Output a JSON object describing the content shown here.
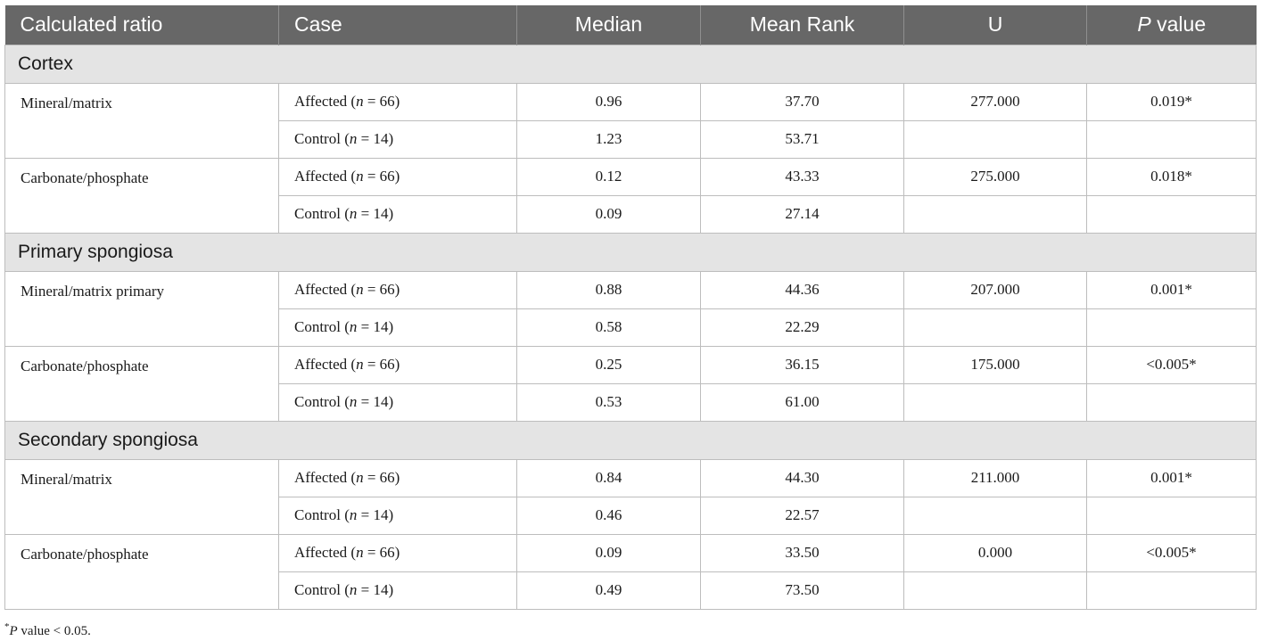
{
  "header": {
    "col1": "Calculated ratio",
    "col2": "Case",
    "col3": "Median",
    "col4": "Mean Rank",
    "col5": "U",
    "col6_italic": "P",
    "col6_rest": " value"
  },
  "sections": [
    {
      "title": "Cortex",
      "groups": [
        {
          "ratio": "Mineral/matrix",
          "rows": [
            {
              "case_prefix": "Affected (",
              "case_n": "n",
              "case_suffix": " = 66)",
              "median": "0.96",
              "mean_rank": "37.70",
              "u": "277.000",
              "p": "0.019*"
            },
            {
              "case_prefix": "Control (",
              "case_n": "n",
              "case_suffix": " = 14)",
              "median": "1.23",
              "mean_rank": "53.71",
              "u": "",
              "p": ""
            }
          ]
        },
        {
          "ratio": "Carbonate/phosphate",
          "rows": [
            {
              "case_prefix": "Affected (",
              "case_n": "n",
              "case_suffix": " = 66)",
              "median": "0.12",
              "mean_rank": "43.33",
              "u": "275.000",
              "p": "0.018*"
            },
            {
              "case_prefix": "Control (",
              "case_n": "n",
              "case_suffix": " = 14)",
              "median": "0.09",
              "mean_rank": "27.14",
              "u": "",
              "p": ""
            }
          ]
        }
      ]
    },
    {
      "title": "Primary spongiosa",
      "groups": [
        {
          "ratio": "Mineral/matrix primary",
          "rows": [
            {
              "case_prefix": "Affected (",
              "case_n": "n",
              "case_suffix": " = 66)",
              "median": "0.88",
              "mean_rank": "44.36",
              "u": "207.000",
              "p": "0.001*"
            },
            {
              "case_prefix": "Control (",
              "case_n": "n",
              "case_suffix": " = 14)",
              "median": "0.58",
              "mean_rank": "22.29",
              "u": "",
              "p": ""
            }
          ]
        },
        {
          "ratio": "Carbonate/phosphate",
          "rows": [
            {
              "case_prefix": "Affected (",
              "case_n": "n",
              "case_suffix": " = 66)",
              "median": "0.25",
              "mean_rank": "36.15",
              "u": "175.000",
              "p": "<0.005*"
            },
            {
              "case_prefix": "Control (",
              "case_n": "n",
              "case_suffix": " = 14)",
              "median": "0.53",
              "mean_rank": "61.00",
              "u": "",
              "p": ""
            }
          ]
        }
      ]
    },
    {
      "title": "Secondary spongiosa",
      "groups": [
        {
          "ratio": "Mineral/matrix",
          "rows": [
            {
              "case_prefix": "Affected (",
              "case_n": "n",
              "case_suffix": " = 66)",
              "median": "0.84",
              "mean_rank": "44.30",
              "u": "211.000",
              "p": "0.001*"
            },
            {
              "case_prefix": "Control (",
              "case_n": "n",
              "case_suffix": " = 14)",
              "median": "0.46",
              "mean_rank": "22.57",
              "u": "",
              "p": ""
            }
          ]
        },
        {
          "ratio": "Carbonate/phosphate",
          "rows": [
            {
              "case_prefix": "Affected (",
              "case_n": "n",
              "case_suffix": " = 66)",
              "median": "0.09",
              "mean_rank": "33.50",
              "u": "0.000",
              "p": "<0.005*"
            },
            {
              "case_prefix": "Control (",
              "case_n": "n",
              "case_suffix": " = 14)",
              "median": "0.49",
              "mean_rank": "73.50",
              "u": "",
              "p": ""
            }
          ]
        }
      ]
    }
  ],
  "footnote": {
    "marker": "*",
    "italic": "P",
    "rest": " value < 0.05."
  },
  "colors": {
    "header_bg": "#676767",
    "section_bg": "#e4e4e4",
    "border": "#bdbdbd"
  }
}
